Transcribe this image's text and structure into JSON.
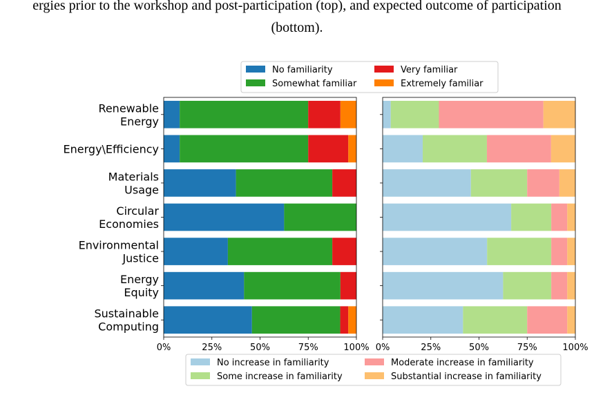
{
  "caption": {
    "line1": "ergies prior to the workshop and post-participation (top), and expected outcome of participation",
    "line2": "(bottom)."
  },
  "chart_data": [
    {
      "type": "bar",
      "orientation": "horizontal",
      "stacked": true,
      "categories": [
        [
          "Renewable",
          "Energy"
        ],
        [
          "Energy\\Efficiency"
        ],
        [
          "Materials",
          "Usage"
        ],
        [
          "Circular",
          "Economies"
        ],
        [
          "Environmental",
          "Justice"
        ],
        [
          "Energy",
          "Equity"
        ],
        [
          "Sustainable",
          "Computing"
        ]
      ],
      "series": [
        {
          "name": "No familiarity",
          "color": "#1f77b4",
          "values": [
            8.3,
            8.3,
            37.5,
            62.5,
            33.3,
            41.7,
            45.8
          ]
        },
        {
          "name": "Somewhat familiar",
          "color": "#2ca02c",
          "values": [
            66.7,
            66.7,
            50.0,
            37.5,
            54.2,
            50.0,
            45.8
          ]
        },
        {
          "name": "Very familiar",
          "color": "#e31a1c",
          "values": [
            16.7,
            20.8,
            12.5,
            0.0,
            12.5,
            8.3,
            4.2
          ]
        },
        {
          "name": "Extremely familiar",
          "color": "#ff7f00",
          "values": [
            8.3,
            4.2,
            0.0,
            0.0,
            0.0,
            0.0,
            4.2
          ]
        }
      ],
      "xlim": [
        0,
        100
      ],
      "xticks": [
        "0%",
        "25%",
        "50%",
        "75%",
        "100%"
      ],
      "legend_position": "top",
      "grid": false
    },
    {
      "type": "bar",
      "orientation": "horizontal",
      "stacked": true,
      "categories": [
        [
          "Renewable",
          "Energy"
        ],
        [
          "Energy\\Efficiency"
        ],
        [
          "Materials",
          "Usage"
        ],
        [
          "Circular",
          "Economies"
        ],
        [
          "Environmental",
          "Justice"
        ],
        [
          "Energy",
          "Equity"
        ],
        [
          "Sustainable",
          "Computing"
        ]
      ],
      "series": [
        {
          "name": "No increase in familiarity",
          "color": "#a6cee3",
          "values": [
            4.2,
            20.8,
            45.8,
            66.7,
            54.2,
            62.5,
            41.7
          ]
        },
        {
          "name": "Some increase in familiarity",
          "color": "#b2df8a",
          "values": [
            25.0,
            33.3,
            29.2,
            20.8,
            33.3,
            25.0,
            33.3
          ]
        },
        {
          "name": "Moderate increase in familiarity",
          "color": "#fb9a99",
          "values": [
            54.2,
            33.3,
            16.7,
            8.3,
            8.3,
            8.3,
            20.8
          ]
        },
        {
          "name": "Substantial increase in familiarity",
          "color": "#fdbf6f",
          "values": [
            16.7,
            12.5,
            8.3,
            4.2,
            4.2,
            4.2,
            4.2
          ]
        }
      ],
      "xlim": [
        0,
        100
      ],
      "xticks": [
        "0%",
        "25%",
        "50%",
        "75%",
        "100%"
      ],
      "legend_position": "bottom",
      "grid": false
    }
  ]
}
